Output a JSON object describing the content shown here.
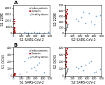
{
  "chart_data": [
    {
      "type": "scatter",
      "title": "A",
      "xlabel": "S1 SARS-CoV-2",
      "ylabel": "S1 229E",
      "xlim": [
        0,
        500
      ],
      "ylim": [
        0,
        4500
      ],
      "xticks": [
        0,
        100,
        200,
        300,
        400,
        500
      ],
      "yticks": [
        0,
        1000,
        2000,
        3000,
        4000
      ],
      "legend": "upper right",
      "series": [
        {
          "name": "Index patients",
          "color": "#999999",
          "marker": "square",
          "x": [
            10,
            15,
            20,
            5,
            12,
            8,
            18,
            22,
            10,
            25,
            8
          ],
          "y": [
            60,
            40,
            80,
            30,
            50,
            20,
            70,
            90,
            45,
            60,
            25
          ]
        },
        {
          "name": "Contacts",
          "color": "#cc0000",
          "marker": "square",
          "x": [
            5,
            8,
            12,
            6,
            10,
            15,
            8,
            10,
            12,
            9
          ],
          "y": [
            2200,
            1500,
            800,
            600,
            1800,
            400,
            300,
            200,
            150,
            100
          ]
        },
        {
          "name": "Healthy donors",
          "color": "#6699cc",
          "marker": "plus",
          "x": [
            80,
            150,
            200,
            280,
            350,
            420,
            480,
            320,
            250,
            180
          ],
          "y": [
            80,
            150,
            50,
            200,
            100,
            60,
            120,
            80,
            30,
            40
          ]
        }
      ]
    },
    {
      "type": "scatter",
      "xlabel": "S2 SARS-CoV-2",
      "ylabel": "S2 229E",
      "xlim": [
        0,
        500
      ],
      "ylim": [
        0,
        500
      ],
      "xticks": [
        0,
        100,
        200,
        300,
        400,
        500
      ],
      "yticks": [
        0,
        100,
        200,
        300,
        400,
        500
      ],
      "series": [
        {
          "color": "#999999",
          "marker": "square",
          "x": [
            15,
            20,
            30,
            10,
            18,
            25,
            22,
            35,
            12,
            28,
            16
          ],
          "y": [
            80,
            100,
            150,
            50,
            90,
            120,
            110,
            160,
            60,
            130,
            70
          ]
        },
        {
          "color": "#cc0000",
          "marker": "square",
          "x": [
            10,
            20,
            15,
            8,
            25,
            18,
            12,
            22,
            16,
            20
          ],
          "y": [
            320,
            280,
            380,
            200,
            420,
            250,
            300,
            340,
            180,
            260
          ]
        },
        {
          "color": "#6699cc",
          "marker": "plus",
          "x": [
            150,
            250,
            350,
            420,
            280,
            180,
            320,
            400,
            220,
            480
          ],
          "y": [
            250,
            380,
            200,
            300,
            180,
            220,
            350,
            150,
            280,
            320
          ]
        }
      ]
    },
    {
      "type": "scatter",
      "title": "B",
      "xlabel": "S1 SARS-CoV-2",
      "ylabel": "S1 OC43",
      "xlim": [
        0,
        500
      ],
      "ylim": [
        0,
        400
      ],
      "xticks": [
        0,
        100,
        200,
        300,
        400,
        500
      ],
      "yticks": [
        0,
        100,
        200,
        300,
        400
      ],
      "legend": "upper right",
      "series": [
        {
          "name": "Index patients",
          "color": "#999999",
          "marker": "square",
          "x": [
            10,
            15,
            20,
            5,
            12,
            8,
            18,
            22,
            10,
            25,
            8
          ],
          "y": [
            15,
            10,
            20,
            8,
            12,
            5,
            18,
            25,
            10,
            20,
            6
          ]
        },
        {
          "name": "Contacts",
          "color": "#cc0000",
          "marker": "square",
          "x": [
            5,
            8,
            12,
            6,
            10,
            15,
            8,
            10,
            12,
            9
          ],
          "y": [
            20,
            15,
            30,
            10,
            25,
            8,
            12,
            18,
            22,
            16
          ]
        },
        {
          "name": "Healthy donors",
          "color": "#6699cc",
          "marker": "plus",
          "x": [
            200,
            300,
            350,
            420,
            280,
            150,
            80,
            250,
            180,
            320
          ],
          "y": [
            250,
            80,
            180,
            50,
            120,
            200,
            30,
            100,
            60,
            150
          ]
        }
      ]
    },
    {
      "type": "scatter",
      "xlabel": "S2 SARS-CoV-2",
      "ylabel": "S2 OC43",
      "xlim": [
        0,
        500
      ],
      "ylim": [
        0,
        400
      ],
      "xticks": [
        0,
        100,
        200,
        300,
        400,
        500
      ],
      "yticks": [
        0,
        100,
        200,
        300,
        400
      ],
      "series": [
        {
          "color": "#999999",
          "marker": "square",
          "x": [
            15,
            20,
            30,
            10,
            18,
            25,
            22,
            35,
            12,
            28,
            16
          ],
          "y": [
            30,
            50,
            80,
            20,
            40,
            60,
            55,
            90,
            25,
            70,
            35
          ]
        },
        {
          "color": "#cc0000",
          "marker": "square",
          "x": [
            10,
            20,
            15,
            8,
            25,
            18,
            12,
            22,
            16,
            20
          ],
          "y": [
            280,
            350,
            200,
            150,
            380,
            120,
            250,
            300,
            180,
            320
          ]
        },
        {
          "color": "#6699cc",
          "marker": "plus",
          "x": [
            150,
            250,
            350,
            420,
            280,
            180,
            320,
            400,
            220,
            480
          ],
          "y": [
            120,
            80,
            200,
            60,
            150,
            100,
            180,
            50,
            130,
            90
          ]
        }
      ]
    }
  ]
}
